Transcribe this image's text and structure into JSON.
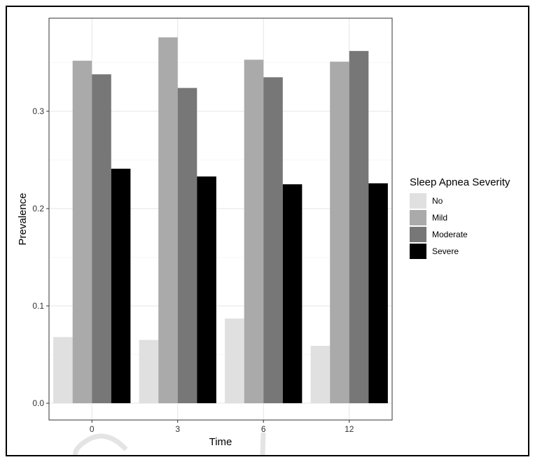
{
  "chart_data": {
    "type": "bar",
    "xlabel": "Time",
    "ylabel": "Prevalence",
    "categories": [
      "0",
      "3",
      "6",
      "12"
    ],
    "ylim": [
      0,
      0.39
    ],
    "yticks": [
      0.0,
      0.1,
      0.2,
      0.3
    ],
    "ytick_labels": [
      "0.0",
      "0.1",
      "0.2",
      "0.3"
    ],
    "grid": true,
    "legend_title": "Sleep Apnea Severity",
    "legend_position": "right",
    "series": [
      {
        "name": "No",
        "color": "#e0e0e0",
        "values": [
          0.068,
          0.065,
          0.087,
          0.059
        ]
      },
      {
        "name": "Mild",
        "color": "#aaaaaa",
        "values": [
          0.352,
          0.376,
          0.353,
          0.351
        ]
      },
      {
        "name": "Moderate",
        "color": "#777777",
        "values": [
          0.338,
          0.324,
          0.335,
          0.362
        ]
      },
      {
        "name": "Severe",
        "color": "#000000",
        "values": [
          0.241,
          0.233,
          0.225,
          0.226
        ]
      }
    ]
  }
}
